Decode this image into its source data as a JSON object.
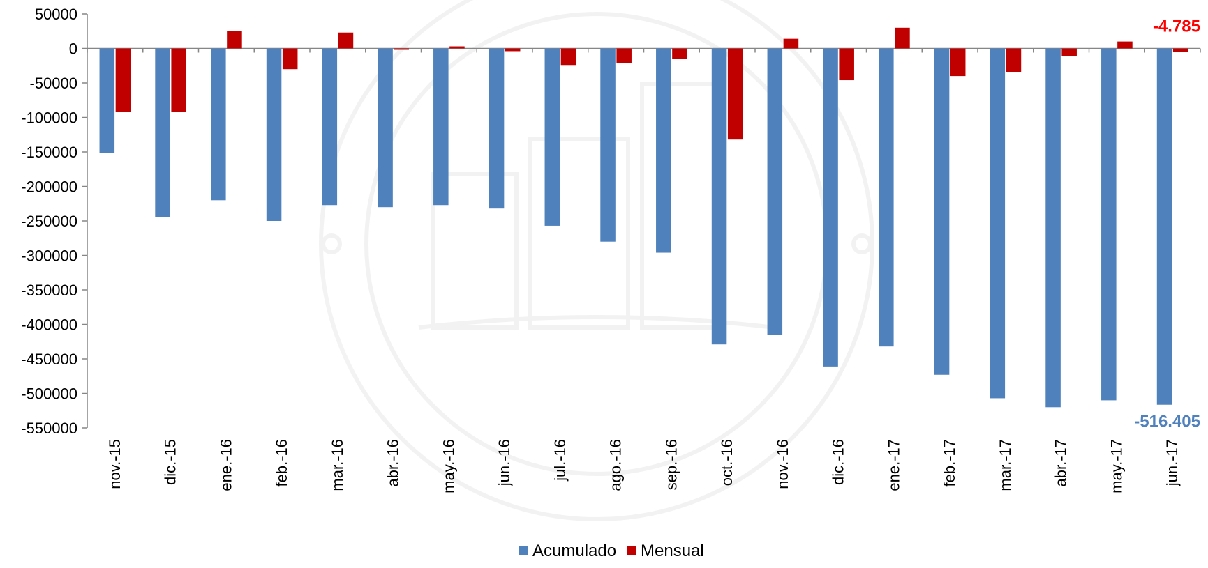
{
  "chart_data": {
    "type": "bar",
    "categories": [
      "nov.-15",
      "dic.-15",
      "ene.-16",
      "feb.-16",
      "mar.-16",
      "abr.-16",
      "may.-16",
      "jun.-16",
      "jul.-16",
      "ago.-16",
      "sep.-16",
      "oct.-16",
      "nov.-16",
      "dic.-16",
      "ene.-17",
      "feb.-17",
      "mar.-17",
      "abr.-17",
      "may.-17",
      "jun.-17"
    ],
    "series": [
      {
        "name": "Acumulado",
        "color": "#4f81bd",
        "values": [
          -152000,
          -244000,
          -220000,
          -250000,
          -227000,
          -230000,
          -227000,
          -232000,
          -257000,
          -280000,
          -296000,
          -429000,
          -415000,
          -461000,
          -432000,
          -473000,
          -507000,
          -520000,
          -510000,
          -516405
        ]
      },
      {
        "name": "Mensual",
        "color": "#c00000",
        "values": [
          -92000,
          -92000,
          25000,
          -30000,
          23000,
          -2000,
          3000,
          -4000,
          -24000,
          -21000,
          -15000,
          -132000,
          14000,
          -46000,
          30000,
          -40000,
          -34000,
          -11000,
          10000,
          -4785
        ]
      }
    ],
    "ylim": [
      -550000,
      50000
    ],
    "ytick_step": 50000,
    "yticks": [
      "50000",
      "0",
      "-50000",
      "-100000",
      "-150000",
      "-200000",
      "-250000",
      "-300000",
      "-350000",
      "-400000",
      "-450000",
      "-500000",
      "-550000"
    ],
    "grid": false,
    "legend_position": "bottom",
    "annotations": [
      {
        "text": "-4.785",
        "color": "#ff0000",
        "series": "Mensual",
        "category": "jun.-17"
      },
      {
        "text": "-516.405",
        "color": "#4f81bd",
        "series": "Acumulado",
        "category": "jun.-17"
      }
    ],
    "title": "",
    "xlabel": "",
    "ylabel": ""
  }
}
